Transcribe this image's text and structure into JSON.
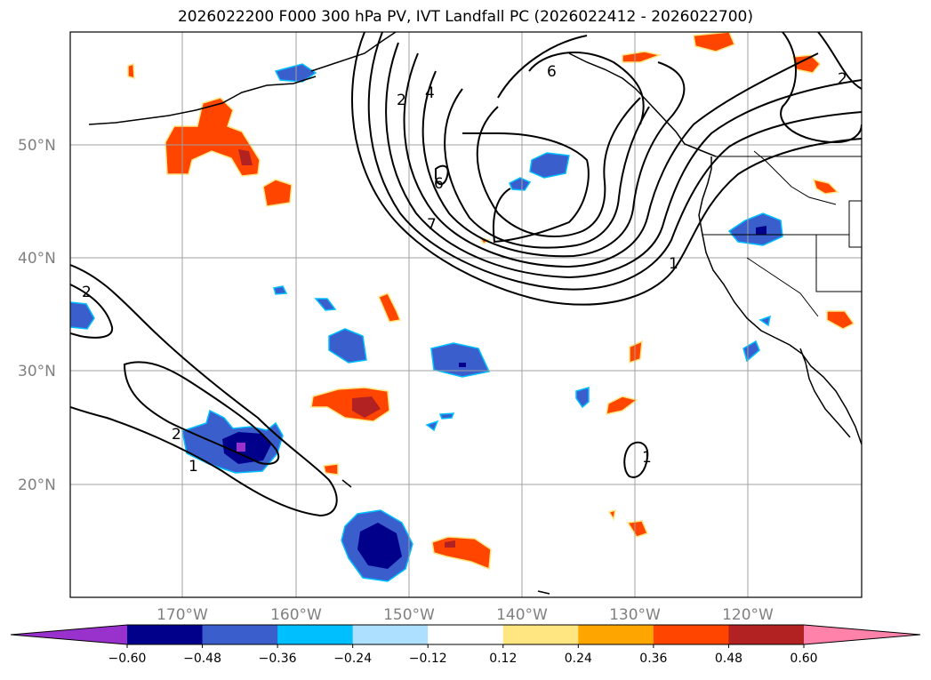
{
  "title": "2026022200 F000 300 hPa PV, IVT Landfall PC (2026022412 - 2026022700)",
  "lat_labels": [
    "50°N",
    "40°N",
    "30°N",
    "20°N"
  ],
  "lon_labels": [
    "170°W",
    "160°W",
    "150°W",
    "140°W",
    "130°W",
    "120°W"
  ],
  "colorbar": {
    "ticks": [
      "−0.60",
      "−0.48",
      "−0.36",
      "−0.24",
      "−0.12",
      "0.12",
      "0.24",
      "0.36",
      "0.48",
      "0.60"
    ],
    "colors": [
      "#9932CC",
      "#00008B",
      "#3A5FCD",
      "#00BFFF",
      "#ADDFFF",
      "#FFFFFF",
      "#FFE680",
      "#FFA500",
      "#FF4500",
      "#B22222",
      "#FF82AB"
    ]
  },
  "contour_labels": [
    "1",
    "1",
    "1",
    "2",
    "2",
    "2",
    "2",
    "4",
    "6",
    "6",
    "7"
  ],
  "colors": {
    "frame": "#000000",
    "grid": "#a0a0a0",
    "contour": "#000000"
  }
}
